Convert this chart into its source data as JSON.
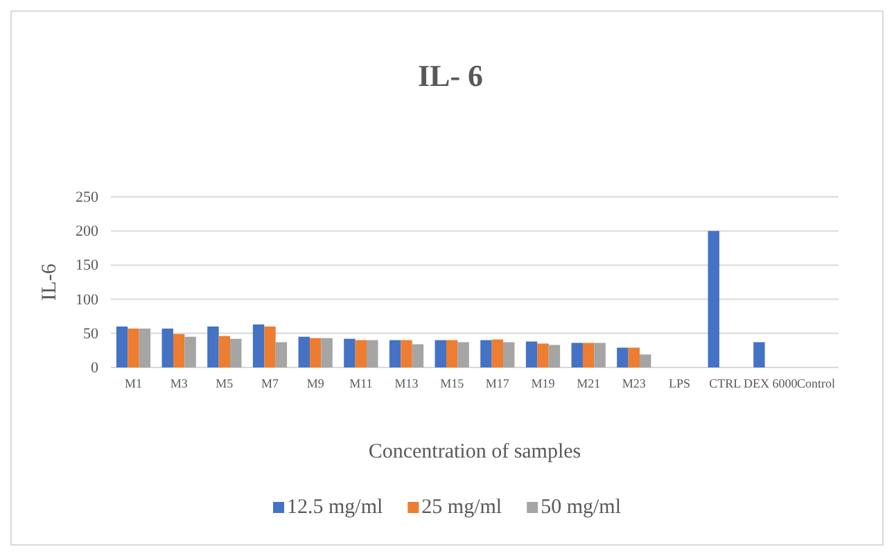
{
  "chart_data": {
    "type": "bar",
    "title": "IL- 6",
    "xlabel": "Concentration of samples",
    "ylabel": "IL-6",
    "categories": [
      "M1",
      "M3",
      "M5",
      "M7",
      "M9",
      "M11",
      "M13",
      "M15",
      "M17",
      "M19",
      "M21",
      "M23",
      "LPS",
      "CTRL",
      "DEX 6000",
      "Control"
    ],
    "series": [
      {
        "name": "12.5 mg/ml",
        "color": "#4472c4",
        "values": [
          60,
          57,
          60,
          63,
          45,
          42,
          40,
          40,
          40,
          38,
          36,
          29,
          null,
          200,
          37,
          null
        ]
      },
      {
        "name": "25 mg/ml",
        "color": "#ed7d31",
        "values": [
          57,
          49,
          46,
          60,
          43,
          40,
          40,
          40,
          41,
          35,
          36,
          29,
          null,
          null,
          null,
          null
        ]
      },
      {
        "name": "50 mg/ml",
        "color": "#a5a5a5",
        "values": [
          57,
          45,
          42,
          37,
          43,
          40,
          34,
          37,
          37,
          33,
          36,
          19,
          null,
          null,
          null,
          null
        ]
      }
    ],
    "ylim": [
      0,
      250
    ],
    "yticks": [
      0,
      50,
      100,
      150,
      200,
      250
    ],
    "grid": "y",
    "legend": "bottom"
  }
}
